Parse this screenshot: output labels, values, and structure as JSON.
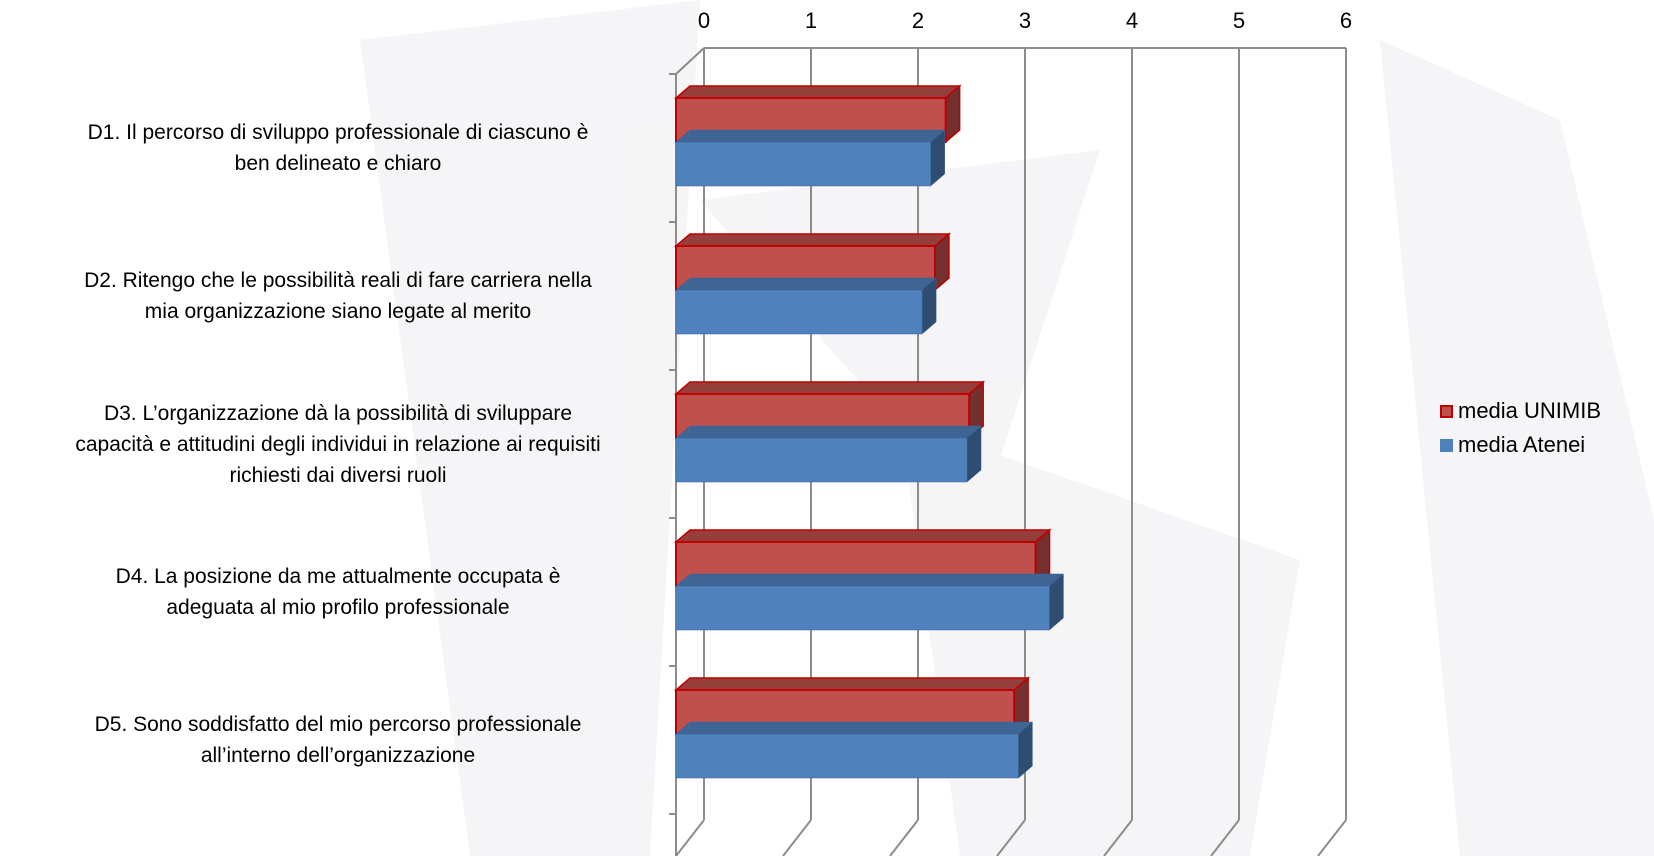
{
  "chart_data": {
    "type": "bar",
    "orientation": "horizontal",
    "three_d": true,
    "xlim": [
      0,
      6
    ],
    "ticks": [
      "0",
      "1",
      "2",
      "3",
      "4",
      "5",
      "6"
    ],
    "tick_position": "top",
    "grid": true,
    "legend_position": "right",
    "categories": [
      "D1. Il percorso di sviluppo professionale di ciascuno è ben delineato e chiaro",
      "D2. Ritengo che le possibilità reali di fare carriera nella mia organizzazione siano legate al merito",
      "D3. L’organizzazione dà la possibilità di sviluppare capacità e attitudini degli individui in relazione ai requisiti richiesti dai diversi ruoli",
      "D4. La posizione da me attualmente occupata è adeguata al mio profilo professionale",
      "D5. Sono soddisfatto del mio percorso professionale all’interno dell’organizzazione"
    ],
    "category_lines": [
      [
        "D1. Il percorso di sviluppo professionale di ciascuno è",
        "ben delineato e chiaro"
      ],
      [
        "D2. Ritengo che le possibilità reali di fare carriera nella",
        "mia organizzazione siano legate al merito"
      ],
      [
        "D3. L’organizzazione dà la possibilità di sviluppare",
        "capacità e attitudini degli individui in relazione ai requisiti",
        "richiesti dai diversi ruoli"
      ],
      [
        "D4. La posizione da me attualmente occupata è",
        "adeguata al mio profilo professionale"
      ],
      [
        "D5. Sono soddisfatto del mio percorso professionale",
        "all’interno dell’organizzazione"
      ]
    ],
    "series": [
      {
        "name": "media UNIMIB",
        "color": "#c0504d",
        "values": [
          2.52,
          2.42,
          2.74,
          3.36,
          3.16
        ]
      },
      {
        "name": "media Atenei",
        "color": "#4f81bd",
        "values": [
          2.38,
          2.3,
          2.72,
          3.49,
          3.2
        ]
      }
    ]
  },
  "legend": {
    "items": [
      {
        "label": "media UNIMIB",
        "color": "#c0504d",
        "border": "#c00000"
      },
      {
        "label": "media Atenei",
        "color": "#4f81bd",
        "border": "#4f81bd"
      }
    ]
  }
}
